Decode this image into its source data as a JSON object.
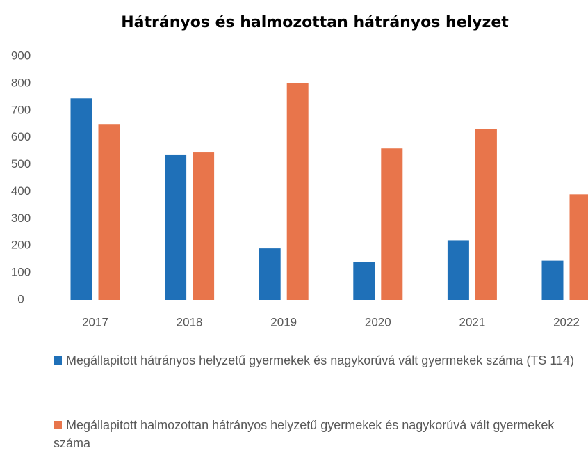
{
  "chart_data": {
    "type": "bar",
    "title": "Hátrányos és halmozottan hátrányos helyzet",
    "categories": [
      "2017",
      "2018",
      "2019",
      "2020",
      "2021",
      "2022"
    ],
    "series": [
      {
        "name": "Megállapitott hátrányos helyzetű gyermekek és nagykorúvá vált gyermekek száma (TS 114)",
        "color": "#1f70b8",
        "values": [
          745,
          535,
          190,
          140,
          220,
          145
        ]
      },
      {
        "name": "Megállapitott halmozottan hátrányos helyzetű gyermekek és nagykorúvá vált gyermekek száma",
        "color": "#e8754b",
        "values": [
          650,
          545,
          800,
          560,
          630,
          390
        ]
      }
    ],
    "ylim": [
      0,
      900
    ],
    "yticks": [
      0,
      100,
      200,
      300,
      400,
      500,
      600,
      700,
      800,
      900
    ],
    "grid": false
  }
}
